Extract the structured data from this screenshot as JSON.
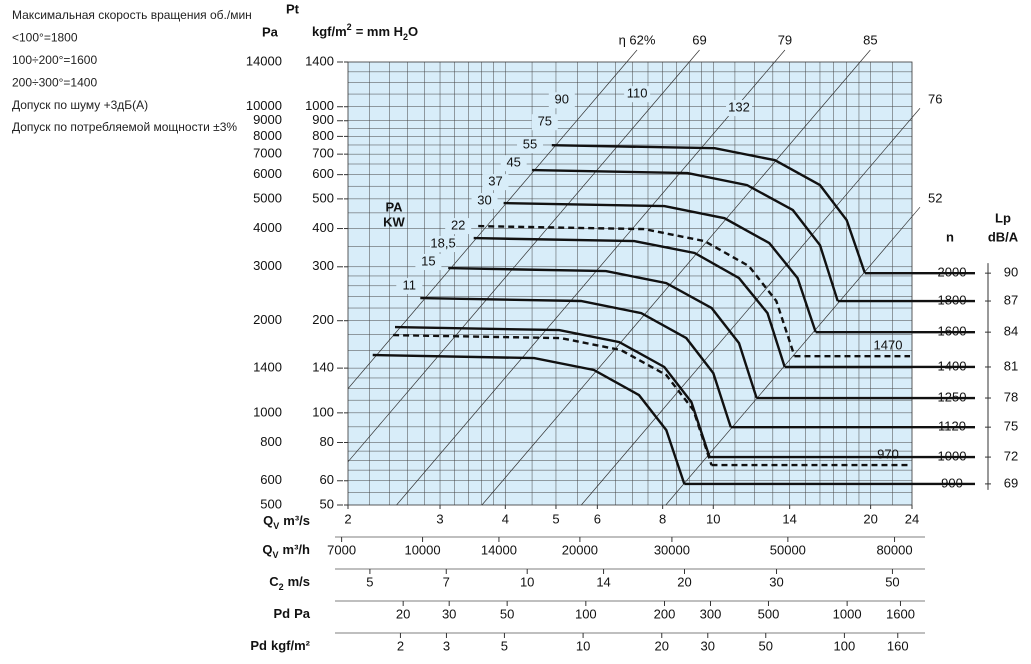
{
  "chart_data": {
    "type": "fan-curve",
    "notes": [
      "Максимальная скорость вращения об./мин",
      "<100°=1800",
      "100÷200°=1600",
      "200÷300°=1400",
      "Допуск по шуму +3дБ(А)",
      "Допуск по потребляемой мощности ±3%"
    ],
    "ylabel": "Pa",
    "y2title": "Pt",
    "y2label": [
      "kgf/m",
      "2",
      "= mm H",
      "2",
      "O"
    ],
    "power_label": [
      "PA",
      "KW"
    ],
    "n_header": "n",
    "lp_header": [
      "Lp",
      "dB/A"
    ],
    "log_scale": true,
    "grid": true,
    "plot_color": "#d8edf9",
    "curve_color": "#111111",
    "xlabel": {
      "text": "Q",
      "sub": "V",
      "unit": "m³/s"
    },
    "xlim": [
      2,
      24
    ],
    "xticks": [
      2,
      3,
      4,
      5,
      6,
      8,
      10,
      14,
      20,
      24
    ],
    "xgrid": [
      2.2,
      2.4,
      2.6,
      2.8,
      3,
      3.2,
      3.4,
      3.6,
      3.8,
      4,
      4.5,
      5,
      5.5,
      6,
      6.5,
      7,
      7.5,
      8,
      8.5,
      9,
      9.5,
      10,
      11,
      12,
      13,
      14,
      15,
      16,
      17,
      18,
      19,
      20,
      22
    ],
    "ylim": [
      500,
      14000
    ],
    "yticks": [
      500,
      600,
      800,
      1000,
      1400,
      2000,
      3000,
      4000,
      5000,
      6000,
      7000,
      8000,
      9000,
      10000,
      14000
    ],
    "ygrid": [
      550,
      600,
      650,
      700,
      750,
      800,
      900,
      1000,
      1100,
      1200,
      1300,
      1400,
      1600,
      1800,
      2000,
      2200,
      2400,
      2600,
      2800,
      3000,
      3500,
      4000,
      4500,
      5000,
      5500,
      6000,
      6500,
      7000,
      7500,
      8000,
      8500,
      9000,
      10000,
      11000,
      12000,
      13000
    ],
    "y2lim": [
      50,
      1400
    ],
    "y2ticks": [
      50,
      60,
      80,
      100,
      140,
      200,
      300,
      400,
      500,
      600,
      700,
      800,
      900,
      1000,
      1400
    ],
    "bottom_axes": [
      {
        "label": {
          "text": "Q",
          "sub": "V",
          "unit": "m³/h"
        },
        "lim": [
          7200,
          86400
        ],
        "ticks": [
          7000,
          10000,
          14000,
          20000,
          30000,
          50000,
          80000
        ]
      },
      {
        "label": {
          "text": "C",
          "sub": "2",
          "unit": "m/s"
        },
        "lim": [
          4.54,
          54.5
        ],
        "ticks": [
          5,
          7,
          10,
          14,
          20,
          30,
          50
        ]
      },
      {
        "label": {
          "text": "Pd",
          "unit": "Pa"
        },
        "lim": [
          12.3,
          1771
        ],
        "ticks": [
          20,
          30,
          50,
          100,
          200,
          300,
          500,
          1000,
          1600
        ]
      },
      {
        "label": {
          "text": "Pd",
          "unit": "kgf/m²"
        },
        "lim": [
          1.26,
          181.4
        ],
        "ticks": [
          2,
          3,
          5,
          10,
          20,
          30,
          50,
          100,
          160
        ]
      }
    ],
    "efficiency_lines": [
      {
        "label": "η 62%",
        "k": 300
      },
      {
        "label": "69",
        "k": 173
      },
      {
        "label": "79",
        "k": 81.5
      },
      {
        "label": "85",
        "k": 38.4
      },
      {
        "label": "76",
        "k": 16
      },
      {
        "label": "52",
        "k": 7.6
      }
    ],
    "series": [
      {
        "name": "2000",
        "lp": 90,
        "style": "solid",
        "x": [
          4.91,
          10.06,
          13.12,
          16.0,
          18.0,
          19.5
        ],
        "values": [
          7490,
          7320,
          6690,
          5545,
          4260,
          2860
        ]
      },
      {
        "name": "1800",
        "lp": 87,
        "style": "solid",
        "x": [
          4.5,
          8.93,
          11.6,
          14.2,
          16.0,
          17.3
        ],
        "values": [
          6210,
          6070,
          5545,
          4595,
          3530,
          2319
        ]
      },
      {
        "name": "1600",
        "lp": 84,
        "style": "solid",
        "x": [
          3.97,
          8.06,
          10.5,
          12.8,
          14.5,
          15.7
        ],
        "values": [
          4845,
          4735,
          4325,
          3585,
          2756,
          1835
        ]
      },
      {
        "name": "1400",
        "lp": 81,
        "style": "solid",
        "x": [
          3.48,
          7.06,
          9.21,
          11.2,
          12.7,
          13.7
        ],
        "values": [
          3724,
          3640,
          3327,
          2756,
          2118,
          1412
        ]
      },
      {
        "name": "1250",
        "lp": 78,
        "style": "solid",
        "x": [
          3.11,
          6.23,
          8.13,
          9.93,
          11.2,
          12.1
        ],
        "values": [
          2970,
          2905,
          2653,
          2199,
          1690,
          1118
        ]
      },
      {
        "name": "1120",
        "lp": 75,
        "style": "solid",
        "x": [
          2.75,
          5.58,
          7.28,
          8.88,
          10.0,
          10.8
        ],
        "values": [
          2370,
          2319,
          2118,
          1755,
          1348,
          898
        ]
      },
      {
        "name": "1000",
        "lp": 72,
        "style": "solid",
        "x": [
          2.46,
          5.07,
          6.61,
          8.06,
          9.08,
          9.84
        ],
        "values": [
          1906,
          1864,
          1703,
          1412,
          1084,
          717
        ]
      },
      {
        "name": "900",
        "lp": 69,
        "style": "solid",
        "x": [
          2.23,
          4.54,
          5.91,
          7.21,
          8.13,
          8.8
        ],
        "values": [
          1545,
          1510,
          1380,
          1143,
          878,
          586
        ]
      },
      {
        "name": "1470",
        "style": "dashed",
        "x": [
          3.55,
          7.38,
          9.62,
          11.7,
          13.2,
          14.3
        ],
        "values": [
          4075,
          3983,
          3640,
          3016,
          2319,
          1532
        ]
      },
      {
        "name": "970",
        "style": "dashed",
        "x": [
          2.44,
          5.11,
          6.66,
          8.13,
          9.16,
          9.92
        ],
        "values": [
          1795,
          1755,
          1603,
          1328,
          1021,
          675
        ]
      }
    ],
    "annotations": [
      {
        "text": "90",
        "x": 5.13,
        "y": 10500
      },
      {
        "text": "75",
        "x": 4.76,
        "y": 8900
      },
      {
        "text": "55",
        "x": 4.46,
        "y": 7490
      },
      {
        "text": "45",
        "x": 4.15,
        "y": 6540
      },
      {
        "text": "37",
        "x": 3.83,
        "y": 5670
      },
      {
        "text": "30",
        "x": 3.65,
        "y": 4920
      },
      {
        "text": "22",
        "x": 3.25,
        "y": 4075
      },
      {
        "text": "18,5",
        "x": 3.04,
        "y": 3560
      },
      {
        "text": "15",
        "x": 2.85,
        "y": 3110
      },
      {
        "text": "11",
        "x": 2.62,
        "y": 2595
      },
      {
        "text": "110",
        "x": 7.15,
        "y": 10990
      },
      {
        "text": "132",
        "x": 11.2,
        "y": 9900
      }
    ]
  }
}
